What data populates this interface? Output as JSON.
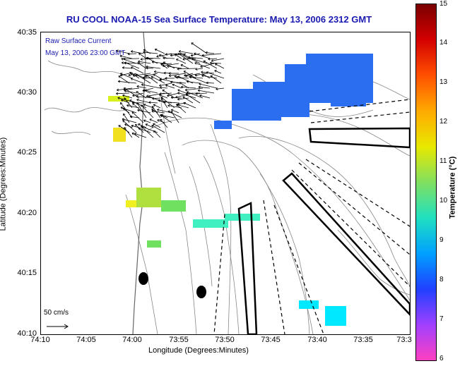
{
  "title": "RU COOL  NOAA-15  Sea Surface Temperature:  May 13, 2006 2312 GMT",
  "current_legend": {
    "line1": "Raw Surface Current",
    "line2": "May 13, 2006 23:00 GMT"
  },
  "y_axis": {
    "label": "Latitude (Degrees:Minutes)",
    "ticks": [
      "40:35",
      "40:30",
      "40:25",
      "40:20",
      "40:15",
      "40:10"
    ]
  },
  "x_axis": {
    "label": "Longitude (Degrees:Minutes)",
    "ticks": [
      "74:10",
      "74:05",
      "74:00",
      "73:55",
      "73:50",
      "73:45",
      "73:40",
      "73:35",
      "73:3"
    ]
  },
  "colorbar": {
    "label": "Temperature (°C)",
    "ticks": [
      "15",
      "14",
      "13",
      "12",
      "11",
      "10",
      "9",
      "8",
      "7",
      "6"
    ],
    "colors": [
      "#7a0000",
      "#d40000",
      "#ff5000",
      "#ffaa00",
      "#e8e800",
      "#80e060",
      "#20e0c0",
      "#00a0ff",
      "#2040ff",
      "#a040ff",
      "#ff40c0"
    ]
  },
  "scale_bar": {
    "label": "50 cm/s"
  },
  "colors": {
    "title": "#1a1ab0",
    "contour": "#888888",
    "sst_blue": "#2b6ef0",
    "sst_yellow": "#f0e020",
    "sst_lime": "#b0e040",
    "sst_green": "#70e060",
    "sst_cyan": "#20f0d0",
    "sst_aqua": "#00e8ff"
  }
}
